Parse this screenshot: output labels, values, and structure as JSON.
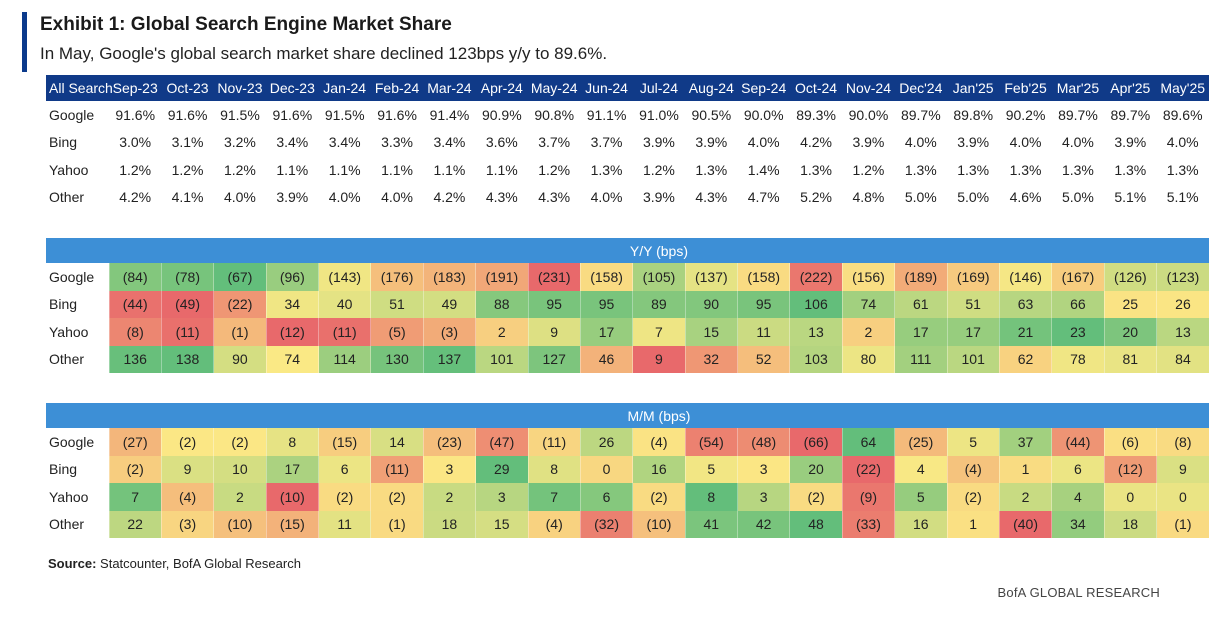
{
  "title": "Exhibit 1: Global Search Engine Market Share",
  "subtitle": "In May, Google's global search market share declined 123bps y/y to 89.6%.",
  "source_label": "Source:",
  "source_text": "Statcounter, BofA Global Research",
  "brand": "BofA GLOBAL RESEARCH",
  "colors": {
    "header_navy": "#103a88",
    "band_blue": "#3d8fd6",
    "accent": "#0b3a8c",
    "heat_low": "#e8696b",
    "heat_mid": "#fbe985",
    "heat_high": "#63be7b"
  },
  "chart_data": [
    {
      "type": "table",
      "corner_label": "All Search",
      "columns": [
        "Sep-23",
        "Oct-23",
        "Nov-23",
        "Dec-23",
        "Jan-24",
        "Feb-24",
        "Mar-24",
        "Apr-24",
        "May-24",
        "Jun-24",
        "Jul-24",
        "Aug-24",
        "Sep-24",
        "Oct-24",
        "Nov-24",
        "Dec'24",
        "Jan'25",
        "Feb'25",
        "Mar'25",
        "Apr'25",
        "May'25"
      ],
      "rows": [
        {
          "label": "Google",
          "values": [
            "91.6%",
            "91.6%",
            "91.5%",
            "91.6%",
            "91.5%",
            "91.6%",
            "91.4%",
            "90.9%",
            "90.8%",
            "91.1%",
            "91.0%",
            "90.5%",
            "90.0%",
            "89.3%",
            "90.0%",
            "89.7%",
            "89.8%",
            "90.2%",
            "89.7%",
            "89.7%",
            "89.6%"
          ]
        },
        {
          "label": "Bing",
          "values": [
            "3.0%",
            "3.1%",
            "3.2%",
            "3.4%",
            "3.4%",
            "3.3%",
            "3.4%",
            "3.6%",
            "3.7%",
            "3.7%",
            "3.9%",
            "3.9%",
            "4.0%",
            "4.2%",
            "3.9%",
            "4.0%",
            "3.9%",
            "4.0%",
            "4.0%",
            "3.9%",
            "4.0%"
          ]
        },
        {
          "label": "Yahoo",
          "values": [
            "1.2%",
            "1.2%",
            "1.2%",
            "1.1%",
            "1.1%",
            "1.1%",
            "1.1%",
            "1.1%",
            "1.2%",
            "1.3%",
            "1.2%",
            "1.3%",
            "1.4%",
            "1.3%",
            "1.2%",
            "1.3%",
            "1.3%",
            "1.3%",
            "1.3%",
            "1.3%",
            "1.3%"
          ]
        },
        {
          "label": "Other",
          "values": [
            "4.2%",
            "4.1%",
            "4.0%",
            "3.9%",
            "4.0%",
            "4.0%",
            "4.2%",
            "4.3%",
            "4.3%",
            "4.0%",
            "3.9%",
            "4.3%",
            "4.7%",
            "5.2%",
            "4.8%",
            "5.0%",
            "5.0%",
            "4.6%",
            "5.0%",
            "5.1%",
            "5.1%"
          ]
        }
      ]
    },
    {
      "type": "heatmap",
      "title": "Y/Y (bps)",
      "rows": [
        {
          "label": "Google",
          "values": [
            -84,
            -78,
            -67,
            -96,
            -143,
            -176,
            -183,
            -191,
            -231,
            -158,
            -105,
            -137,
            -158,
            -222,
            -156,
            -189,
            -169,
            -146,
            -167,
            -126,
            -123
          ]
        },
        {
          "label": "Bing",
          "values": [
            -44,
            -49,
            -22,
            34,
            40,
            51,
            49,
            88,
            95,
            95,
            89,
            90,
            95,
            106,
            74,
            61,
            51,
            63,
            66,
            25,
            26
          ]
        },
        {
          "label": "Yahoo",
          "values": [
            -8,
            -11,
            -1,
            -12,
            -11,
            -5,
            -3,
            2,
            9,
            17,
            7,
            15,
            11,
            13,
            2,
            17,
            17,
            21,
            23,
            20,
            13
          ]
        },
        {
          "label": "Other",
          "values": [
            136,
            138,
            90,
            74,
            114,
            130,
            137,
            101,
            127,
            46,
            9,
            32,
            52,
            103,
            80,
            111,
            101,
            62,
            78,
            81,
            84
          ]
        }
      ]
    },
    {
      "type": "heatmap",
      "title": "M/M (bps)",
      "rows": [
        {
          "label": "Google",
          "values": [
            -27,
            -2,
            -2,
            8,
            -15,
            14,
            -23,
            -47,
            -11,
            26,
            -4,
            -54,
            -48,
            -66,
            64,
            -25,
            5,
            37,
            -44,
            -6,
            -8
          ]
        },
        {
          "label": "Bing",
          "values": [
            -2,
            9,
            10,
            17,
            6,
            -11,
            3,
            29,
            8,
            0,
            16,
            5,
            3,
            20,
            -22,
            4,
            -4,
            1,
            6,
            -12,
            9
          ]
        },
        {
          "label": "Yahoo",
          "values": [
            7,
            -4,
            2,
            -10,
            -2,
            -2,
            2,
            3,
            7,
            6,
            -2,
            8,
            3,
            -2,
            -9,
            5,
            -2,
            2,
            4,
            0,
            0
          ]
        },
        {
          "label": "Other",
          "values": [
            22,
            -3,
            -10,
            -15,
            11,
            -1,
            18,
            15,
            -4,
            -32,
            -10,
            41,
            42,
            48,
            -33,
            16,
            1,
            -40,
            34,
            18,
            -1
          ]
        }
      ]
    }
  ]
}
